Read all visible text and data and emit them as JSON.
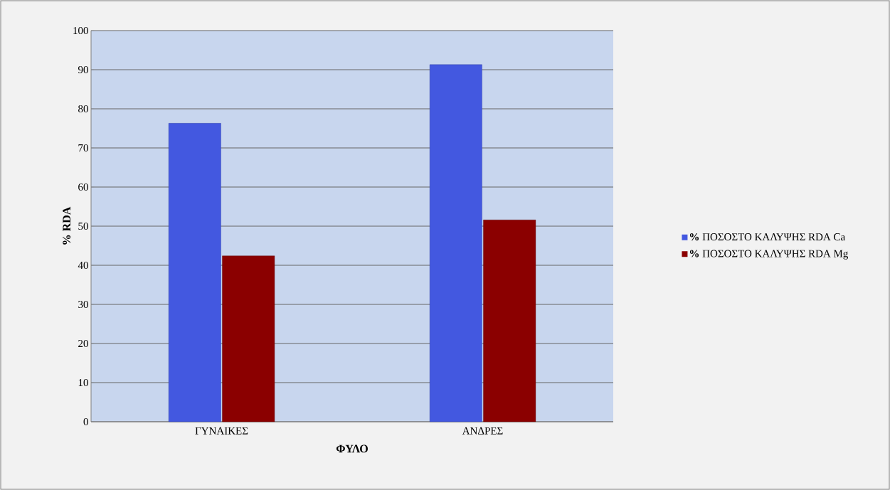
{
  "chart_data": {
    "type": "bar",
    "xlabel": "ΦΥΛΟ",
    "ylabel": "% RDA",
    "categories": [
      "ΓΥΝΑΙΚΕΣ",
      "ΑΝΔΡΕΣ"
    ],
    "series": [
      {
        "name": "**%** ΠΟΣΟΣΤΟ ΚΑΛΥΨΗΣ RDA Ca",
        "color": "#4358e0",
        "values": [
          76.3,
          91.3
        ]
      },
      {
        "name": "**%** ΠΟΣΟΣΤΟ ΚΑΛΥΨΗΣ RDA Mg",
        "color": "#8b0000",
        "values": [
          42.4,
          51.6
        ]
      }
    ],
    "ylim": [
      0,
      100
    ],
    "yticks": [
      0,
      10,
      20,
      30,
      40,
      50,
      60,
      70,
      80,
      90,
      100
    ],
    "grid": "y",
    "legend": "right"
  }
}
